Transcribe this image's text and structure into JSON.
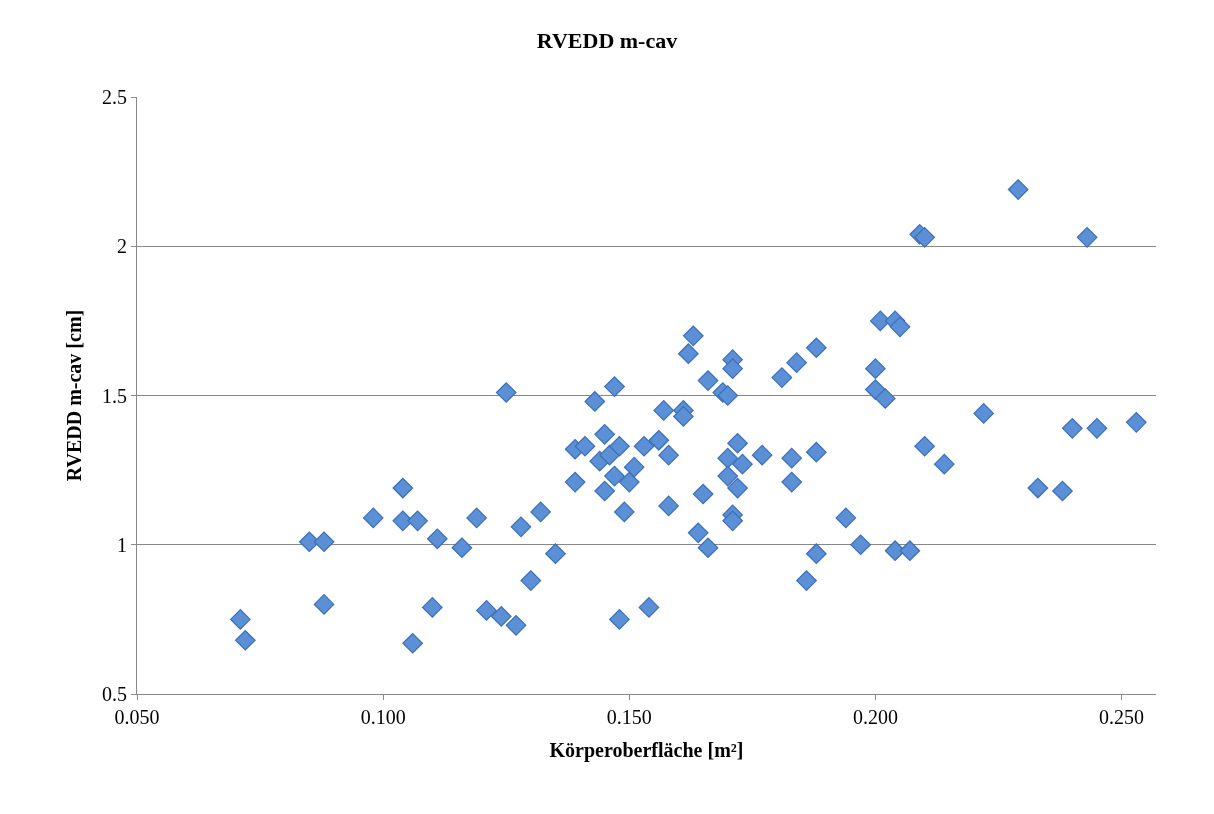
{
  "chart_data": {
    "type": "scatter",
    "title": "RVEDD m-cav",
    "xlabel": "Körperoberfläche [m²]",
    "ylabel": "RVEDD m-cav [cm]",
    "xlim": [
      0.05,
      0.257
    ],
    "ylim": [
      0.5,
      2.5
    ],
    "xticks": [
      {
        "value": 0.05,
        "label": "0.050"
      },
      {
        "value": 0.1,
        "label": "0.100"
      },
      {
        "value": 0.15,
        "label": "0.150"
      },
      {
        "value": 0.2,
        "label": "0.200"
      },
      {
        "value": 0.25,
        "label": "0.250"
      }
    ],
    "yticks": [
      0.5,
      1,
      1.5,
      2,
      2.5
    ],
    "grid": "y",
    "marker": "diamond",
    "series": [
      {
        "color": "#5b8fd6",
        "x": [
          0.071,
          0.072,
          0.085,
          0.088,
          0.088,
          0.098,
          0.104,
          0.104,
          0.106,
          0.107,
          0.11,
          0.111,
          0.116,
          0.119,
          0.121,
          0.124,
          0.125,
          0.127,
          0.128,
          0.13,
          0.132,
          0.135,
          0.139,
          0.139,
          0.141,
          0.143,
          0.144,
          0.145,
          0.145,
          0.146,
          0.147,
          0.147,
          0.148,
          0.148,
          0.149,
          0.15,
          0.151,
          0.153,
          0.154,
          0.156,
          0.157,
          0.158,
          0.158,
          0.161,
          0.161,
          0.162,
          0.163,
          0.164,
          0.165,
          0.166,
          0.166,
          0.169,
          0.17,
          0.17,
          0.171,
          0.171,
          0.17,
          0.171,
          0.171,
          0.172,
          0.172,
          0.173,
          0.177,
          0.181,
          0.183,
          0.183,
          0.184,
          0.186,
          0.188,
          0.188,
          0.188,
          0.194,
          0.197,
          0.2,
          0.2,
          0.201,
          0.202,
          0.204,
          0.204,
          0.205,
          0.207,
          0.209,
          0.21,
          0.21,
          0.214,
          0.222,
          0.229,
          0.233,
          0.238,
          0.24,
          0.243,
          0.245,
          0.253
        ],
        "values": [
          0.75,
          0.68,
          1.01,
          1.01,
          0.8,
          1.09,
          1.19,
          1.08,
          0.67,
          1.08,
          0.79,
          1.02,
          0.99,
          1.09,
          0.78,
          0.76,
          1.51,
          0.73,
          1.06,
          0.88,
          1.11,
          0.97,
          1.32,
          1.21,
          1.33,
          1.48,
          1.28,
          1.37,
          1.18,
          1.3,
          1.53,
          1.23,
          1.33,
          0.75,
          1.11,
          1.21,
          1.26,
          1.33,
          0.79,
          1.35,
          1.45,
          1.3,
          1.13,
          1.45,
          1.43,
          1.64,
          1.7,
          1.04,
          1.17,
          1.55,
          0.99,
          1.51,
          1.29,
          1.23,
          1.62,
          1.59,
          1.5,
          1.1,
          1.08,
          1.19,
          1.34,
          1.27,
          1.3,
          1.56,
          1.29,
          1.21,
          1.61,
          0.88,
          1.66,
          1.31,
          0.97,
          1.09,
          1.0,
          1.59,
          1.52,
          1.75,
          1.49,
          0.98,
          1.75,
          1.73,
          0.98,
          2.04,
          2.03,
          1.33,
          1.27,
          1.44,
          2.19,
          1.19,
          1.18,
          1.39,
          2.03,
          1.39,
          1.41
        ]
      }
    ]
  }
}
